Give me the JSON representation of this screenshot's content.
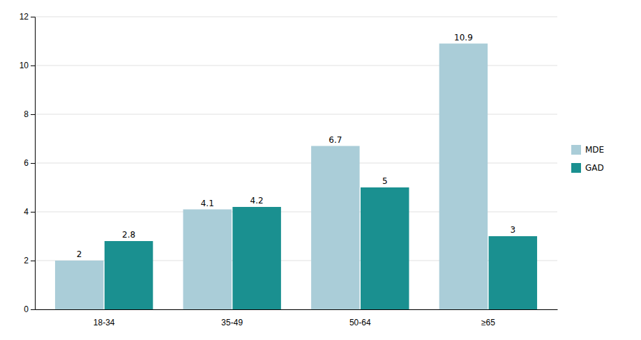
{
  "chart_data": {
    "type": "bar",
    "categories": [
      "18-34",
      "35-49",
      "50-64",
      "≥65"
    ],
    "series": [
      {
        "name": "MDE",
        "color": "#aacdd8",
        "values": [
          2.0,
          4.1,
          6.7,
          10.9
        ]
      },
      {
        "name": "GAD",
        "color": "#1a9090",
        "values": [
          2.8,
          4.2,
          5.0,
          3.0
        ]
      }
    ],
    "ylim": [
      0,
      12
    ],
    "yticks": [
      0,
      2,
      4,
      6,
      8,
      10,
      12
    ],
    "grid": true,
    "legend": "right",
    "data_labels": true
  }
}
